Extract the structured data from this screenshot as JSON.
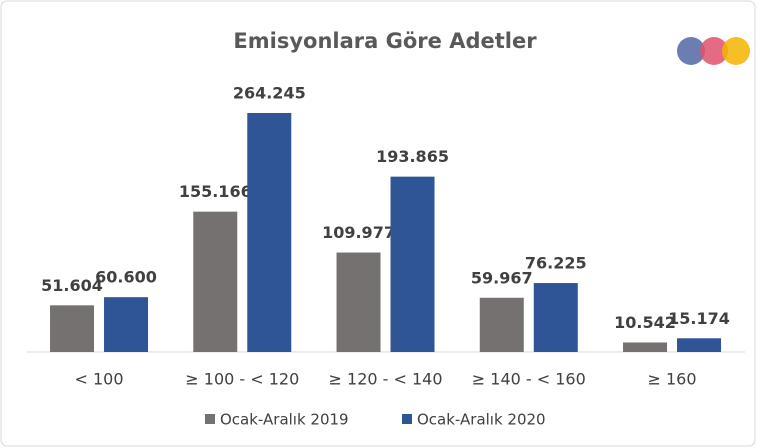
{
  "chart_data": {
    "type": "bar",
    "title": "Emisyonlara Göre Adetler",
    "categories": [
      "< 100",
      "≥ 100 - < 120",
      "≥ 120 - < 140",
      "≥ 140 - < 160",
      "≥  160"
    ],
    "series": [
      {
        "name": "Ocak-Aralık 2019",
        "color": "#767171",
        "values": [
          51604,
          155166,
          109977,
          59967,
          10542
        ],
        "value_labels": [
          "51.604",
          "155.166",
          "109.977",
          "59.967",
          "10.542"
        ]
      },
      {
        "name": "Ocak-Aralık 2020",
        "color": "#2f5597",
        "values": [
          60600,
          264245,
          193865,
          76225,
          15174
        ],
        "value_labels": [
          "60.600",
          "264.245",
          "193.865",
          "76.225",
          "15.174"
        ]
      }
    ],
    "legend": "bottom"
  }
}
